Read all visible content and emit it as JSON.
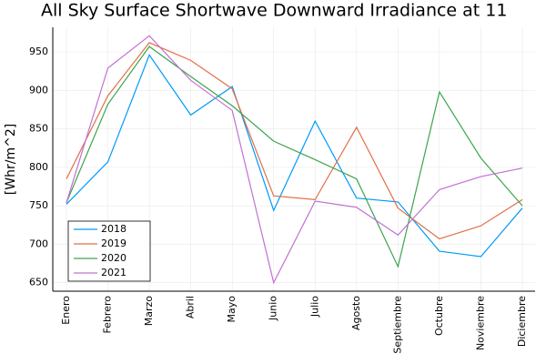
{
  "chart_data": {
    "type": "line",
    "title": "All Sky Surface Shortwave Downward Irradiance at 11",
    "ylabel": "[Whr/m^2]",
    "categories": [
      "Enero",
      "Febrero",
      "Marzo",
      "Abril",
      "Mayo",
      "Junio",
      "Julio",
      "Agosto",
      "Septiembre",
      "Octubre",
      "Noviembre",
      "Diciembre"
    ],
    "series": [
      {
        "name": "2018",
        "color": "#009af9",
        "values": [
          752,
          807,
          946,
          868,
          905,
          744,
          860,
          760,
          755,
          691,
          684,
          747
        ]
      },
      {
        "name": "2019",
        "color": "#e26f46",
        "values": [
          785,
          893,
          962,
          939,
          902,
          763,
          758,
          852,
          747,
          707,
          724,
          758
        ]
      },
      {
        "name": "2020",
        "color": "#3da44d",
        "values": [
          754,
          882,
          957,
          918,
          880,
          834,
          810,
          785,
          671,
          898,
          812,
          750
        ]
      },
      {
        "name": "2021",
        "color": "#c271d2",
        "values": [
          754,
          929,
          971,
          913,
          874,
          650,
          756,
          748,
          712,
          771,
          788,
          799
        ]
      }
    ],
    "ylim": [
      639,
      982
    ],
    "yticks": [
      650,
      700,
      750,
      800,
      850,
      900,
      950
    ],
    "grid": true,
    "legend": "bottom-left"
  }
}
